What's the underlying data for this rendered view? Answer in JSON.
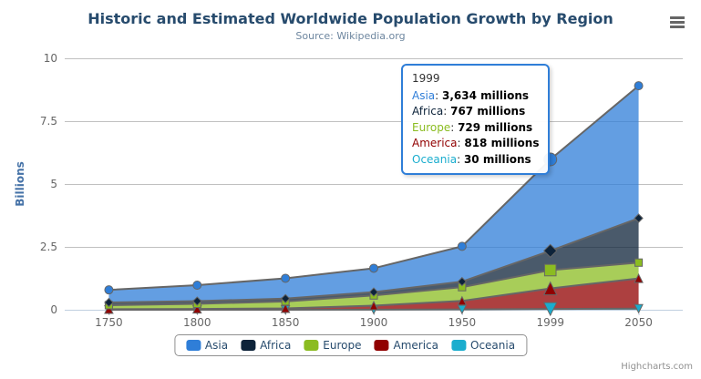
{
  "chart_data": {
    "type": "area",
    "stacking": "normal",
    "title": "Historic and Estimated Worldwide Population Growth by Region",
    "subtitle": "Source: Wikipedia.org",
    "categories": [
      "1750",
      "1800",
      "1850",
      "1900",
      "1950",
      "1999",
      "2050"
    ],
    "xlabel": "",
    "ylabel": "Billions",
    "ylim": [
      0,
      10
    ],
    "yticks": [
      0,
      2.5,
      5,
      7.5,
      10
    ],
    "values_unit": "millions",
    "grid": true,
    "legend_position": "bottom",
    "stack_order_bottom_to_top": [
      "Oceania",
      "America",
      "Europe",
      "Africa",
      "Asia"
    ],
    "series": [
      {
        "name": "Asia",
        "color": "#2f7ed8",
        "marker": "circle",
        "values": [
          502,
          635,
          809,
          947,
          1402,
          3634,
          5268
        ]
      },
      {
        "name": "Africa",
        "color": "#0d233a",
        "marker": "diamond",
        "values": [
          106,
          107,
          111,
          133,
          221,
          767,
          1766
        ]
      },
      {
        "name": "Europe",
        "color": "#8bbc21",
        "marker": "square",
        "values": [
          163,
          203,
          276,
          408,
          547,
          729,
          628
        ]
      },
      {
        "name": "America",
        "color": "#910000",
        "marker": "triangle-up",
        "values": [
          18,
          31,
          54,
          156,
          339,
          818,
          1201
        ]
      },
      {
        "name": "Oceania",
        "color": "#1aadce",
        "marker": "triangle-down",
        "values": [
          2,
          2,
          2,
          6,
          13,
          30,
          46
        ]
      }
    ]
  },
  "tooltip": {
    "header": "1999",
    "hover_category_index": 5,
    "rows": [
      {
        "name": "Asia",
        "color": "#2f7ed8",
        "value": "3,634 millions"
      },
      {
        "name": "Africa",
        "color": "#0d233a",
        "value": "767 millions"
      },
      {
        "name": "Europe",
        "color": "#8bbc21",
        "value": "729 millions"
      },
      {
        "name": "America",
        "color": "#910000",
        "value": "818 millions"
      },
      {
        "name": "Oceania",
        "color": "#1aadce",
        "value": "30 millions"
      }
    ]
  },
  "credits": {
    "label": "Highcharts.com"
  },
  "theme": {
    "background": "#ffffff",
    "title_color": "#274b6d",
    "subtitle_color": "#6D869F",
    "axis_label_color": "#666666",
    "yaxis_title_color": "#4572A7",
    "grid_color": "#C0C0C0",
    "axis_line_color": "#C0D0E0",
    "series_line_color": "#666666",
    "fill_opacity": 0.75,
    "legend_text_color": "#274b6d",
    "legend_border_color": "#909090",
    "tooltip_border_color": "#2f7ed8",
    "tooltip_text_color": "#333333",
    "credits_color": "#909090",
    "menu_icon_color": "#666666"
  }
}
